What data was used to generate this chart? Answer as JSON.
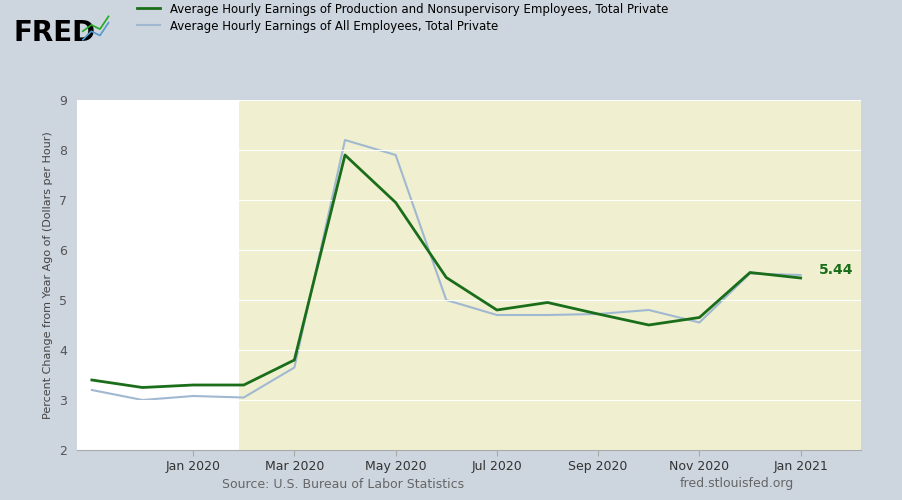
{
  "legend_line1": "Average Hourly Earnings of Production and Nonsupervisory Employees, Total Private",
  "legend_line2": "Average Hourly Earnings of All Employees, Total Private",
  "ylabel": "Percent Change from Year Ago of (Dollars per Hour)",
  "source_left": "Source: U.S. Bureau of Labor Statistics",
  "source_right": "fred.stlouisfed.org",
  "ylim": [
    2,
    9
  ],
  "yticks": [
    2,
    3,
    4,
    5,
    6,
    7,
    8,
    9
  ],
  "bg_color": "#cdd5de",
  "plot_bg_white": "#ffffff",
  "plot_bg_shaded": "#f0f0d0",
  "line1_color": "#1a6e1a",
  "line2_color": "#a0b8d0",
  "end_label_color": "#1a6e1a",
  "end_label_value": "5.44",
  "xtick_labels": [
    "Jan 2020",
    "Mar 2020",
    "May 2020",
    "Jul 2020",
    "Sep 2020",
    "Nov 2020",
    "Jan 2021"
  ],
  "x_indices": [
    2,
    4,
    6,
    8,
    10,
    12,
    14
  ],
  "shade_start_x": 2.9,
  "x_min": -0.3,
  "x_max": 15.2,
  "series1_x": [
    0,
    1,
    2,
    3,
    4,
    5,
    6,
    7,
    8,
    9,
    10,
    11,
    12,
    13,
    14
  ],
  "series1_y": [
    3.4,
    3.25,
    3.3,
    3.3,
    3.8,
    7.9,
    6.95,
    5.45,
    4.8,
    4.95,
    4.72,
    4.5,
    4.65,
    5.55,
    5.44
  ],
  "series2_x": [
    0,
    1,
    2,
    3,
    4,
    5,
    6,
    7,
    8,
    9,
    10,
    11,
    12,
    13,
    14
  ],
  "series2_y": [
    3.2,
    3.0,
    3.08,
    3.05,
    3.65,
    8.2,
    7.9,
    5.0,
    4.7,
    4.7,
    4.72,
    4.8,
    4.55,
    5.53,
    5.5
  ]
}
